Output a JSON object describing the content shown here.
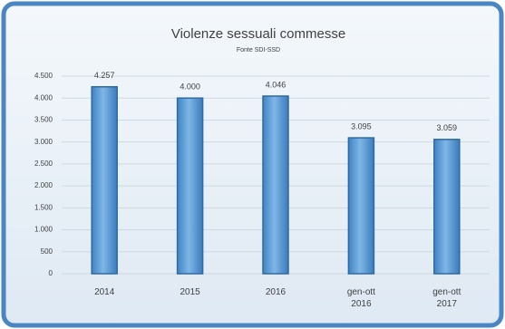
{
  "chart_data": {
    "type": "bar",
    "title": "Violenze sessuali commesse",
    "subtitle": "Fonte SDI-SSD",
    "categories": [
      "2014",
      "2015",
      "2016",
      "gen-ott 2016",
      "gen-ott 2017"
    ],
    "values": [
      4257,
      4000,
      4046,
      3095,
      3059
    ],
    "value_labels": [
      "4.257",
      "4.000",
      "4.046",
      "3.095",
      "3.059"
    ],
    "color": "#5b9bd5",
    "ylim": [
      0,
      4500
    ],
    "yticks": [
      0,
      500,
      {
        "value": 1000,
        "label": "1.000"
      },
      {
        "value": 1500,
        "label": "1.500"
      },
      {
        "value": 2000,
        "label": "2.000"
      },
      {
        "value": 2500,
        "label": "2.500"
      },
      {
        "value": 3000,
        "label": "3.000"
      },
      {
        "value": 3500,
        "label": "3.500"
      },
      {
        "value": 4000,
        "label": "4.000"
      },
      {
        "value": 4500,
        "label": "4.500"
      }
    ],
    "grid": true
  }
}
